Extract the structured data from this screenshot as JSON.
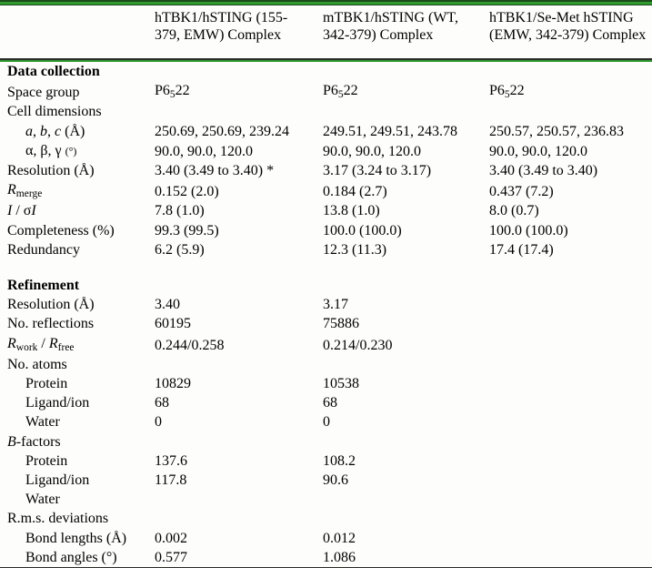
{
  "colors": {
    "rule_green": "#2f9b2f",
    "rule_dark_green": "#1c4a1c",
    "rule_dark": "#2a2a26",
    "text": "#000000",
    "background": "#fdfdfc"
  },
  "table": {
    "columns": [
      {
        "label": ""
      },
      {
        "label": "hTBK1/hSTING (155-379, EMW) Complex"
      },
      {
        "label": "mTBK1/hSTING (WT, 342-379) Complex"
      },
      {
        "label": "hTBK1/Se-Met hSTING (EMW, 342-379) Complex"
      }
    ],
    "rows": [
      {
        "section": true,
        "label": "Data collection",
        "values": [
          "",
          "",
          ""
        ]
      },
      {
        "label": "Space group",
        "values": [
          "P6<sub>5</sub>22",
          "P6<sub>5</sub>22",
          "P6<sub>5</sub>22"
        ]
      },
      {
        "label": "Cell dimensions",
        "values": [
          "",
          "",
          ""
        ]
      },
      {
        "indent": true,
        "label": "<i>a</i>, <i>b</i>, <i>c</i> (Å)",
        "values": [
          "250.69, 250.69, 239.24",
          "249.51, 249.51, 243.78",
          "250.57, 250.57, 236.83"
        ]
      },
      {
        "indent": true,
        "label": "α, β, γ <span class=\"small\">(°)</span>",
        "values": [
          "90.0, 90.0, 120.0",
          "90.0, 90.0, 120.0",
          "90.0, 90.0, 120.0"
        ]
      },
      {
        "label": "Resolution (Å)",
        "values": [
          "3.40 (3.49 to 3.40) *",
          "3.17 (3.24 to 3.17)",
          "3.40 (3.49 to 3.40)"
        ]
      },
      {
        "label": "<i>R</i><sub>merge</sub>",
        "values": [
          "0.152 (2.0)",
          "0.184 (2.7)",
          "0.437 (7.2)"
        ]
      },
      {
        "label": "<i>I</i> / σ<i>I</i>",
        "values": [
          "7.8 (1.0)",
          "13.8 (1.0)",
          "8.0 (0.7)"
        ]
      },
      {
        "label": "Completeness (%)",
        "values": [
          "99.3 (99.5)",
          "100.0 (100.0)",
          "100.0 (100.0)"
        ]
      },
      {
        "label": "Redundancy",
        "values": [
          "6.2 (5.9)",
          "12.3 (11.3)",
          "17.4 (17.4)"
        ]
      },
      {
        "blank": true,
        "label": "",
        "values": [
          "",
          "",
          ""
        ]
      },
      {
        "section": true,
        "label": "Refinement",
        "values": [
          "",
          "",
          ""
        ]
      },
      {
        "label": "Resolution (Å)",
        "values": [
          "3.40",
          "3.17",
          ""
        ]
      },
      {
        "label": "No. reflections",
        "values": [
          "60195",
          "75886",
          ""
        ]
      },
      {
        "label": "<i>R</i><sub>work</sub> / <i>R</i><sub>free</sub>",
        "values": [
          "0.244/0.258",
          "0.214/0.230",
          ""
        ]
      },
      {
        "label": "No. atoms",
        "values": [
          "",
          "",
          ""
        ]
      },
      {
        "indent": true,
        "label": "Protein",
        "values": [
          "10829",
          "10538",
          ""
        ]
      },
      {
        "indent": true,
        "label": "Ligand/ion",
        "values": [
          "68",
          "68",
          ""
        ]
      },
      {
        "indent": true,
        "label": "Water",
        "values": [
          "0",
          "0",
          ""
        ]
      },
      {
        "label": "<i>B</i>-factors",
        "values": [
          "",
          "",
          ""
        ]
      },
      {
        "indent": true,
        "label": "Protein",
        "values": [
          "137.6",
          "108.2",
          ""
        ]
      },
      {
        "indent": true,
        "label": "Ligand/ion",
        "values": [
          "117.8",
          "90.6",
          ""
        ]
      },
      {
        "indent": true,
        "label": "Water",
        "values": [
          "",
          "",
          ""
        ]
      },
      {
        "label": "R.m.s. deviations",
        "values": [
          "",
          "",
          ""
        ]
      },
      {
        "indent": true,
        "label": "Bond lengths (Å)",
        "values": [
          "0.002",
          "0.012",
          ""
        ]
      },
      {
        "indent": true,
        "label": "Bond angles (°)",
        "values": [
          "0.577",
          "1.086",
          ""
        ]
      }
    ]
  }
}
